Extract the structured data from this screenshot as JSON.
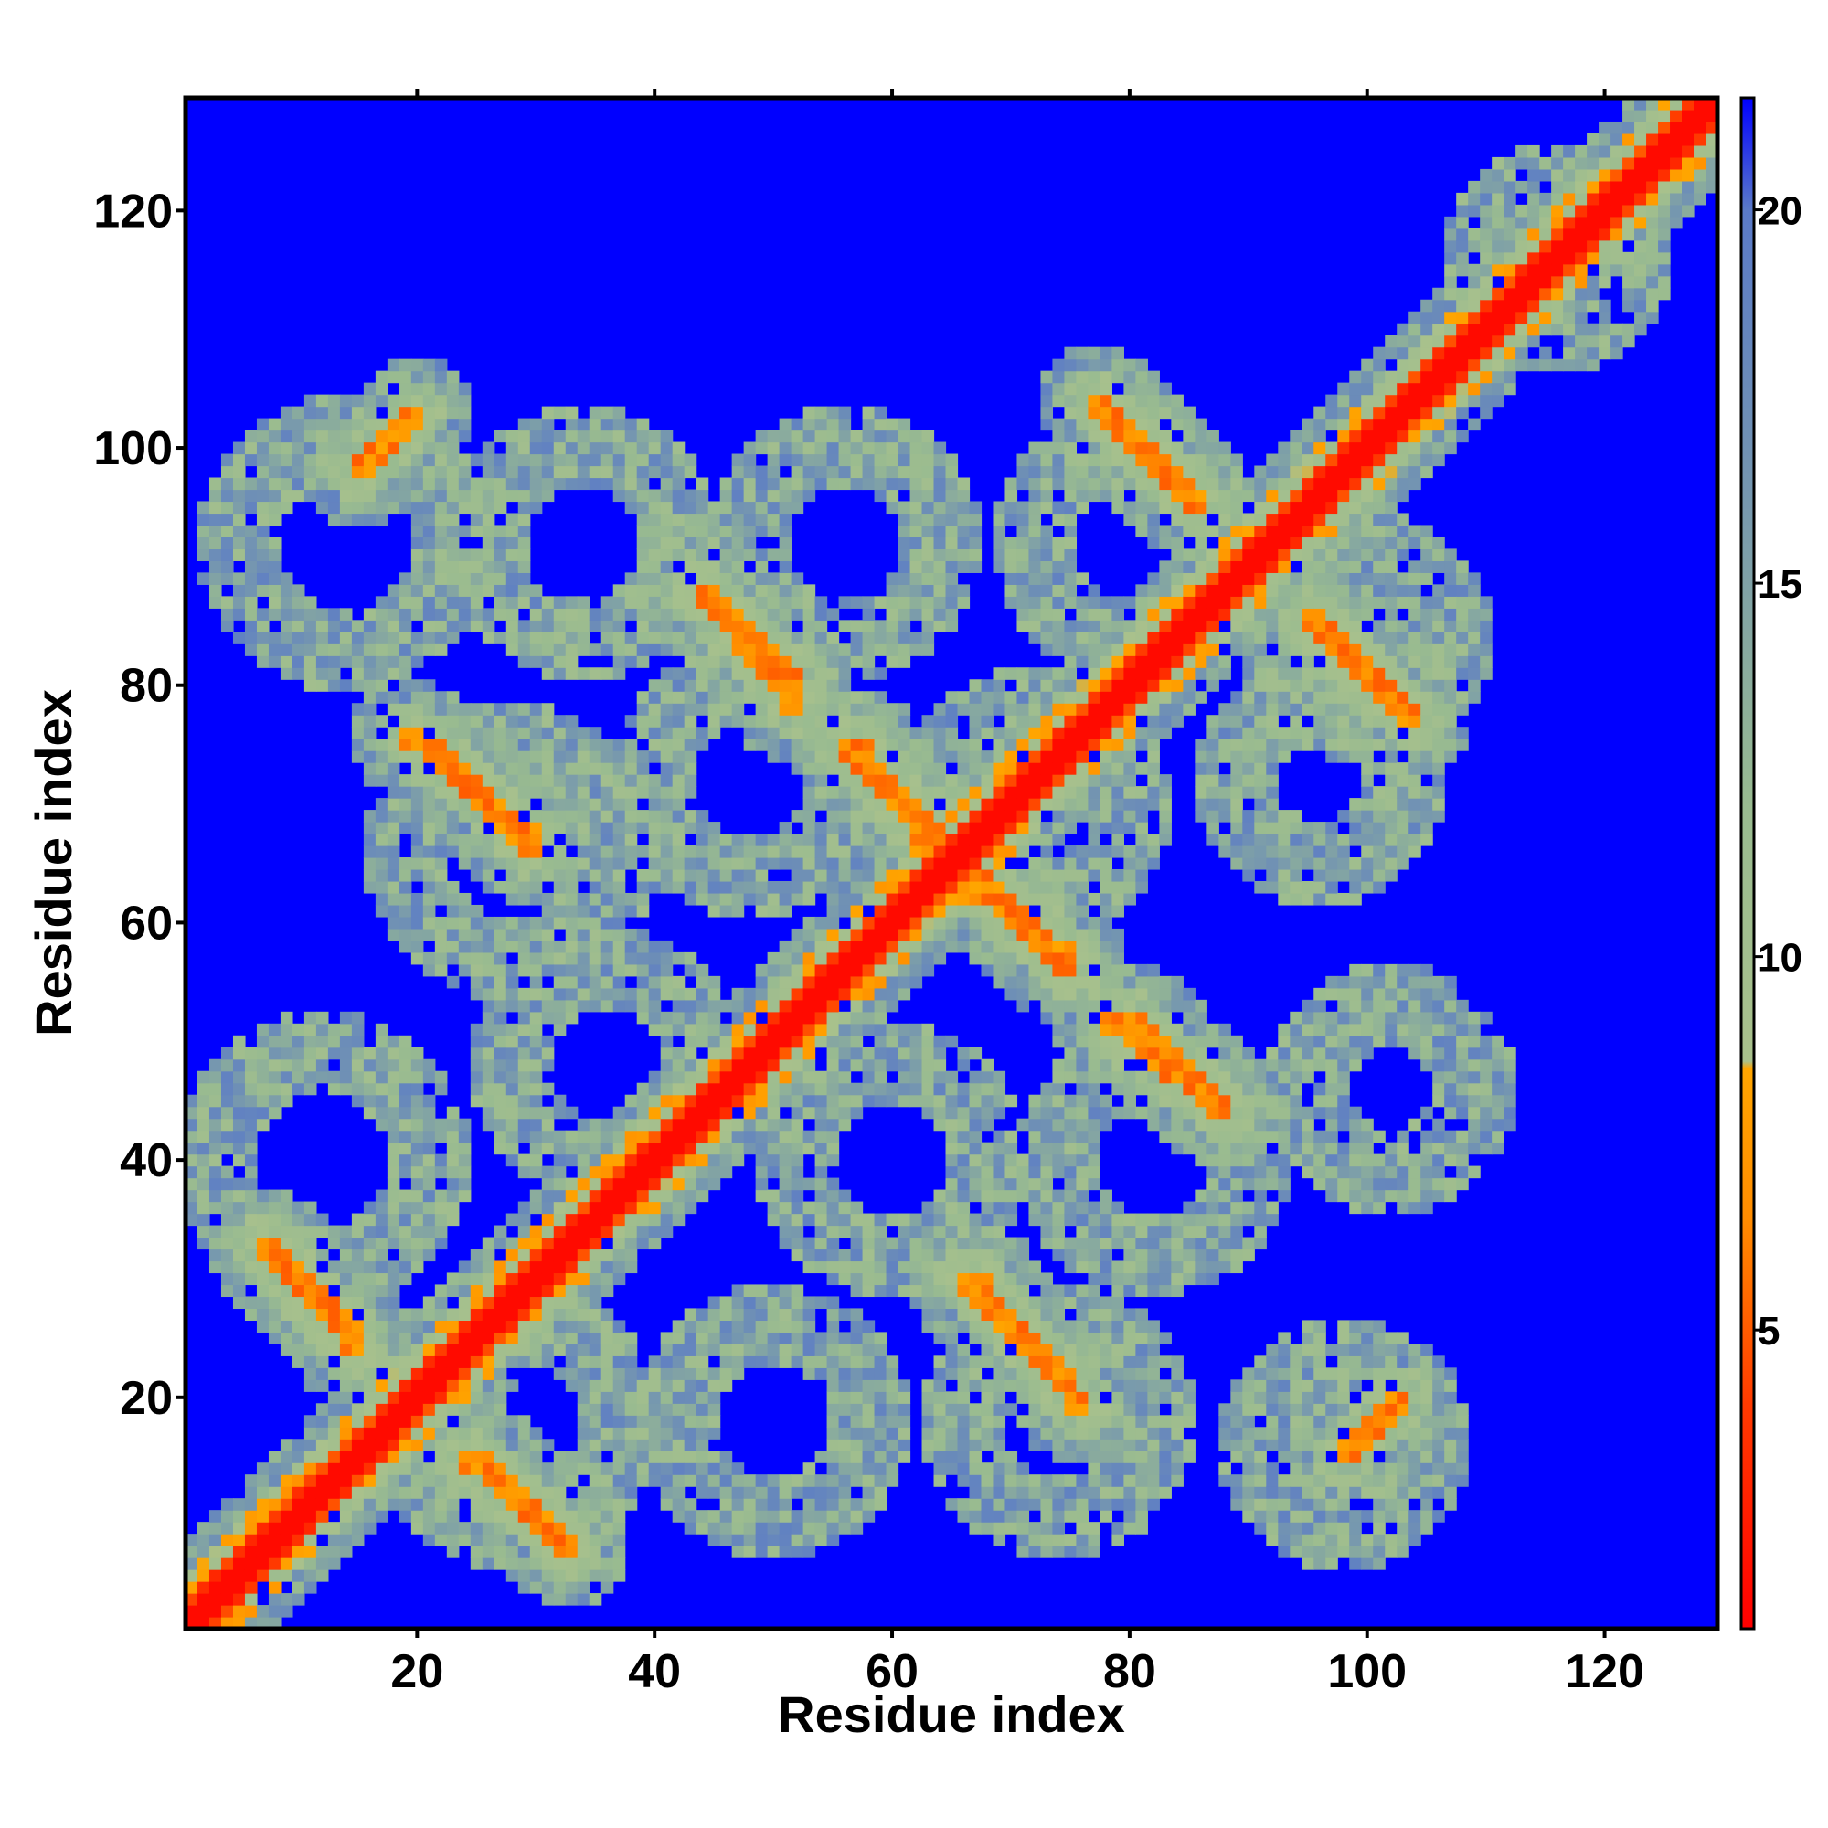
{
  "chart_data": {
    "type": "heatmap",
    "title": "",
    "xlabel": "Residue index",
    "ylabel": "Residue index",
    "xlim": [
      1,
      129
    ],
    "ylim": [
      1,
      129
    ],
    "xticks": [
      20,
      40,
      60,
      80,
      100,
      120
    ],
    "yticks": [
      20,
      40,
      60,
      80,
      100,
      120
    ],
    "colorbar": {
      "ticks": [
        5,
        10,
        15,
        20
      ],
      "range": [
        1,
        21.5
      ],
      "stops": [
        {
          "value": 1.0,
          "color": "#ff0000"
        },
        {
          "value": 4.0,
          "color": "#ff3a00"
        },
        {
          "value": 6.5,
          "color": "#ff8c00"
        },
        {
          "value": 8.5,
          "color": "#ffa500"
        },
        {
          "value": 8.6,
          "color": "#a9c18c"
        },
        {
          "value": 12.0,
          "color": "#99bb90"
        },
        {
          "value": 17.0,
          "color": "#6f90b5"
        },
        {
          "value": 20.0,
          "color": "#5a7ac8"
        },
        {
          "value": 21.5,
          "color": "#0000ff"
        }
      ]
    },
    "background_color": "#0000ff",
    "description_values": {
      "diagonal": "contact distance ~1-4 along i=j",
      "features": [
        {
          "kind": "antidiagonal",
          "x": [
            44,
            52
          ],
          "y": [
            88,
            78
          ]
        },
        {
          "kind": "antidiagonal",
          "x": [
            57,
            64
          ],
          "y": [
            75,
            67
          ]
        },
        {
          "kind": "antidiagonal",
          "x": [
            67,
            75
          ],
          "y": [
            63,
            56
          ]
        },
        {
          "kind": "antidiagonal",
          "x": [
            80,
            88
          ],
          "y": [
            52,
            44
          ]
        },
        {
          "kind": "antidiagonal",
          "x": [
            78,
            86
          ],
          "y": [
            103,
            95
          ]
        },
        {
          "kind": "antidiagonal",
          "x": [
            96,
            104
          ],
          "y": [
            85,
            77
          ]
        },
        {
          "kind": "antidiagonal",
          "x": [
            19,
            30
          ],
          "y": [
            76,
            67
          ]
        },
        {
          "kind": "antidiagonal",
          "x": [
            24,
            33
          ],
          "y": [
            15,
            7
          ]
        },
        {
          "kind": "antidiagonal",
          "x": [
            66,
            75
          ],
          "y": [
            30,
            21
          ]
        },
        {
          "kind": "antidiagonal",
          "x": [
            7,
            15
          ],
          "y": [
            33,
            25
          ]
        },
        {
          "kind": "antidiagonal",
          "x": [
            15,
            20
          ],
          "y": [
            98,
            103
          ]
        }
      ]
    }
  }
}
